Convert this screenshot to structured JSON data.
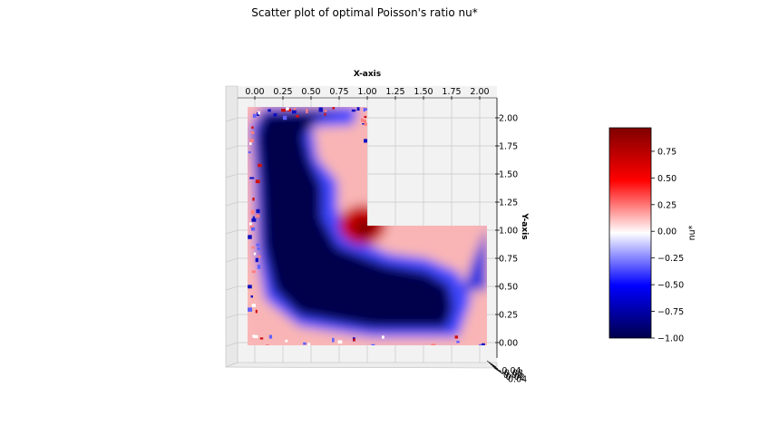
{
  "chart_data": {
    "type": "scatter",
    "title": "Scatter plot of optimal Poisson's ratio nu*",
    "xlabel": "X-axis",
    "ylabel": "Y-axis",
    "xlim": [
      0.0,
      2.0
    ],
    "ylim": [
      0.0,
      2.0
    ],
    "x_ticks": [
      "0.00",
      "0.25",
      "0.50",
      "0.75",
      "1.00",
      "1.25",
      "1.50",
      "1.75",
      "2.00"
    ],
    "y_ticks": [
      "0.00",
      "0.25",
      "0.50",
      "0.75",
      "1.00",
      "1.25",
      "1.50",
      "1.75",
      "2.00"
    ],
    "z_ticks": [
      "-0.04",
      "-0.02",
      "0.00",
      "0.02",
      "0.04"
    ],
    "grid": true,
    "domain_shape": "L-shaped region: [0,2]x[0,1] union [0,1]x[1,2]",
    "colormap": "seismic",
    "colorbar": {
      "label": "nu*",
      "range": [
        -1.0,
        0.97
      ],
      "ticks": [
        "0.75",
        "0.50",
        "0.25",
        "0.00",
        "−0.25",
        "−0.50",
        "−0.75",
        "−1.00"
      ]
    },
    "regions": [
      {
        "description": "strongly negative band (nu* = -1.00)",
        "value": -1.0
      },
      {
        "description": "positive peak near re-entrant corner (1.0, 1.0)",
        "value": 0.95
      },
      {
        "description": "mildly positive outer border",
        "value": 0.3
      }
    ]
  },
  "colors": {
    "neg": "#00004c",
    "mid": "#ffffff",
    "pos": "#7f0000",
    "grid": "#c8c8c8",
    "pane": "#f2f2f2"
  }
}
